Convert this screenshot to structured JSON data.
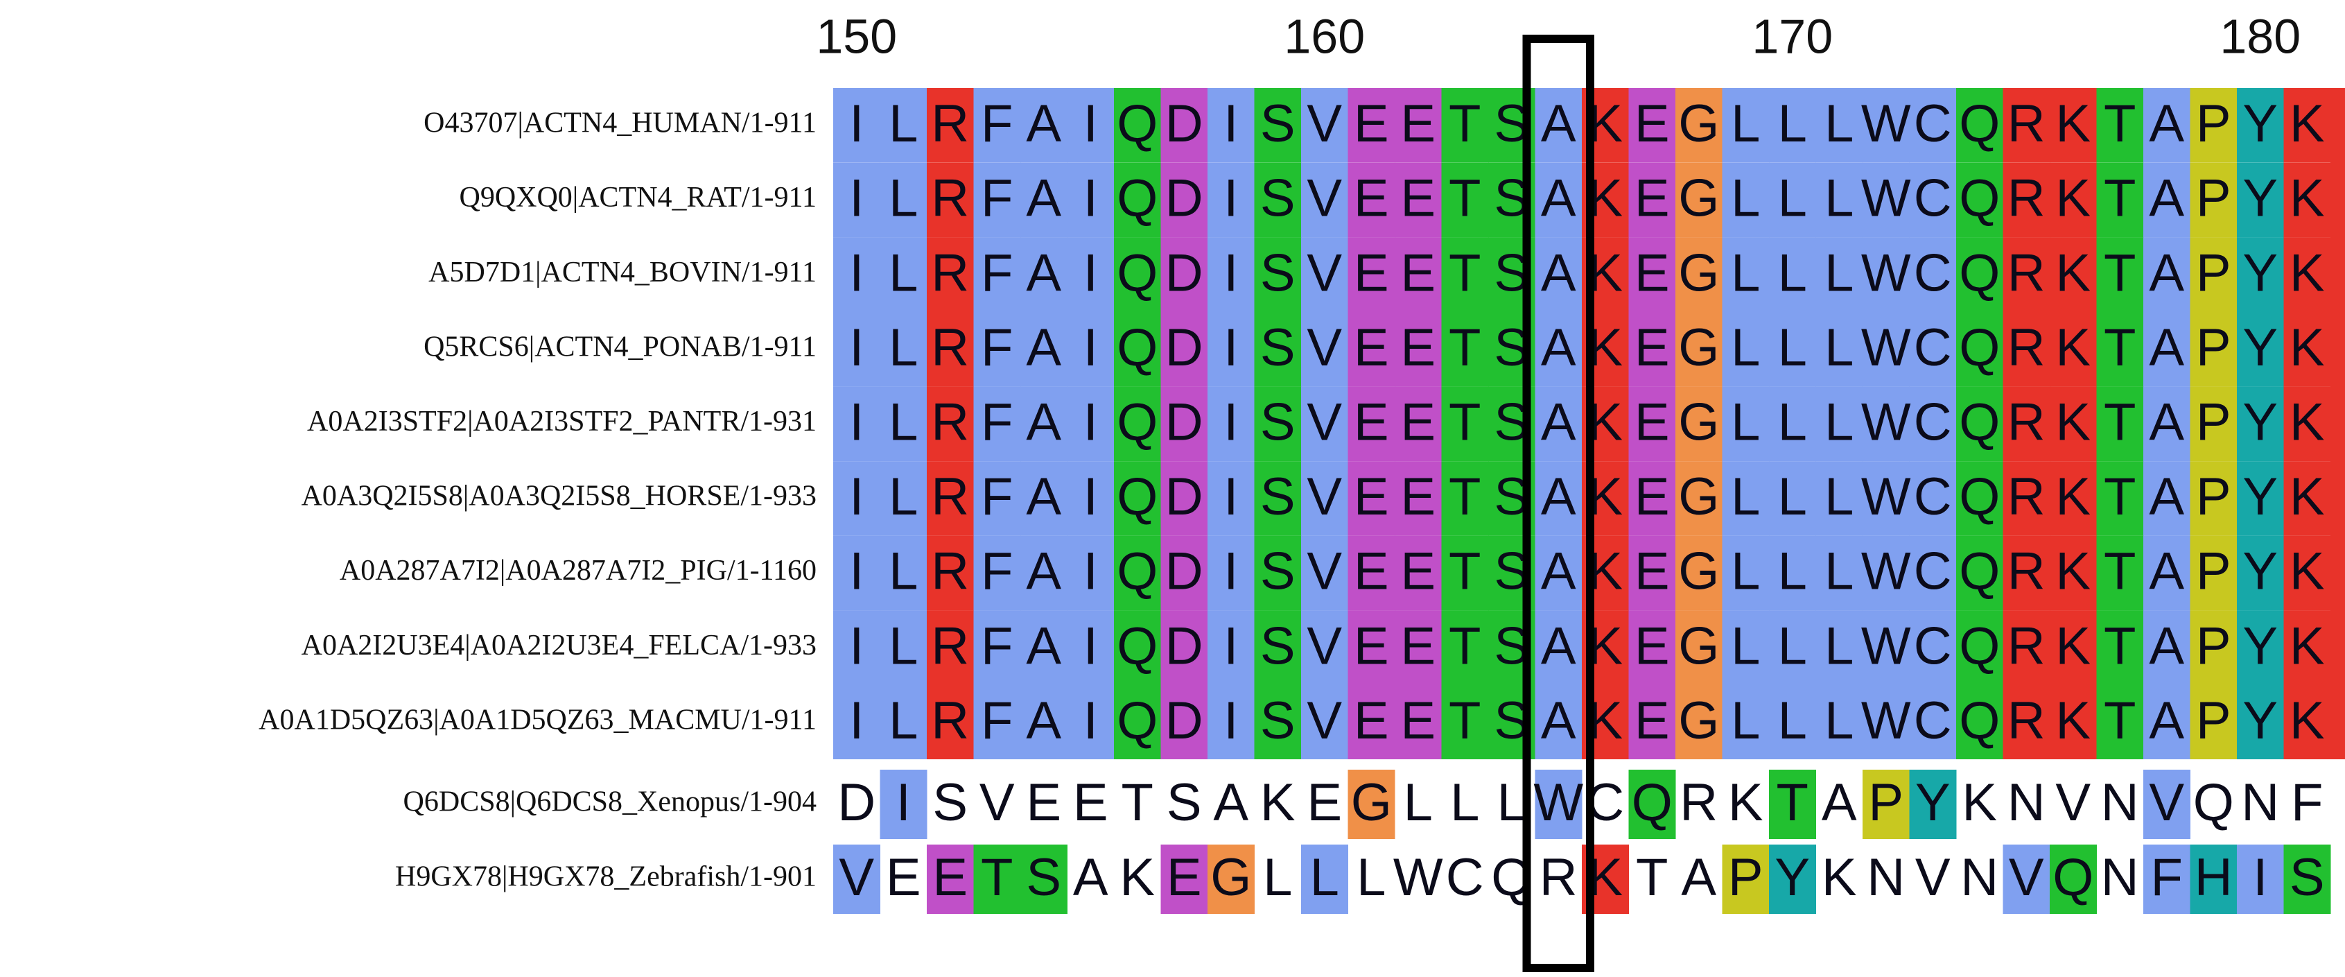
{
  "ruler": [
    150,
    160,
    170,
    180
  ],
  "highlight_column": 15,
  "residue_colors": {
    "A": "#80a0f0",
    "I": "#80a0f0",
    "L": "#80a0f0",
    "M": "#80a0f0",
    "F": "#80a0f0",
    "W": "#80a0f0",
    "V": "#80a0f0",
    "C": "#80a0f0",
    "R": "#e8332a",
    "K": "#e8332a",
    "N": "#22c030",
    "S": "#22c030",
    "T": "#22c030",
    "Q": "#22c030",
    "D": "#c050c8",
    "E": "#c050c8",
    "G": "#f09048",
    "P": "#c8c820",
    "H": "#17a8a8",
    "Y": "#17a8a8"
  },
  "rows": [
    {
      "label": "O43707|ACTN4_HUMAN/1-911",
      "sequence": "ILRFAIQDISVEETSAKEGLLLWCQRKTAPYK",
      "shade_all": true
    },
    {
      "label": "Q9QXQ0|ACTN4_RAT/1-911",
      "sequence": "ILRFAIQDISVEETSAKEGLLLWCQRKTAPYK",
      "shade_all": true
    },
    {
      "label": "A5D7D1|ACTN4_BOVIN/1-911",
      "sequence": "ILRFAIQDISVEETSAKEGLLLWCQRKTAPYK",
      "shade_all": true
    },
    {
      "label": "Q5RCS6|ACTN4_PONAB/1-911",
      "sequence": "ILRFAIQDISVEETSAKEGLLLWCQRKTAPYK",
      "shade_all": true
    },
    {
      "label": "A0A2I3STF2|A0A2I3STF2_PANTR/1-931",
      "sequence": "ILRFAIQDISVEETSAKEGLLLWCQRKTAPYK",
      "shade_all": true
    },
    {
      "label": "A0A3Q2I5S8|A0A3Q2I5S8_HORSE/1-933",
      "sequence": "ILRFAIQDISVEETSAKEGLLLWCQRKTAPYK",
      "shade_all": true
    },
    {
      "label": "A0A287A7I2|A0A287A7I2_PIG/1-1160",
      "sequence": "ILRFAIQDISVEETSAKEGLLLWCQRKTAPYK",
      "shade_all": true
    },
    {
      "label": "A0A2I2U3E4|A0A2I2U3E4_FELCA/1-933",
      "sequence": "ILRFAIQDISVEETSAKEGLLLWCQRKTAPYK",
      "shade_all": true
    },
    {
      "label": "A0A1D5QZ63|A0A1D5QZ63_MACMU/1-911",
      "sequence": "ILRFAIQDISVEETSAKEGLLLWCQRKTAPYK",
      "shade_all": true
    },
    {
      "label": "Q6DCS8|Q6DCS8_Xenopus/1-904",
      "sequence": "DISVEETSAKEGLLLWCQRKTAPYKNVNVQNF",
      "shade_all": false,
      "shaded": [
        1,
        11,
        15,
        17,
        20,
        22,
        23,
        28
      ]
    },
    {
      "label": "H9GX78|H9GX78_Zebrafish/1-901",
      "sequence": "VEETSAKEGLLLWCQRKTAPYKNVNVQNFHIS",
      "shade_all": false,
      "shaded": [
        0,
        2,
        3,
        4,
        7,
        8,
        10,
        16,
        19,
        20,
        25,
        26,
        28,
        29,
        30,
        31
      ]
    }
  ]
}
